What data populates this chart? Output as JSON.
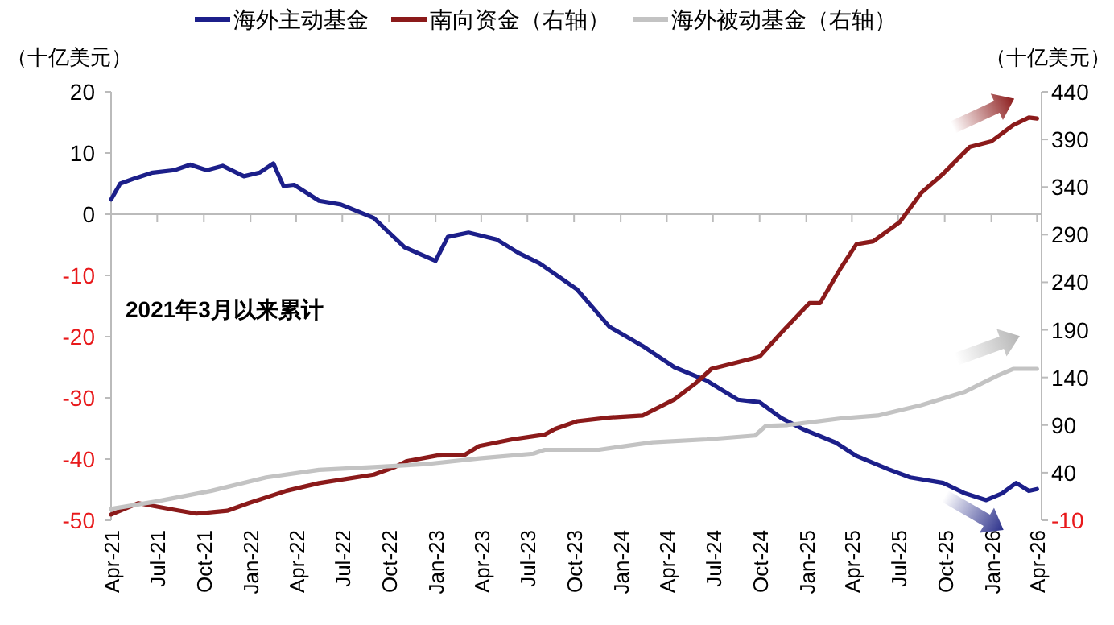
{
  "chart_data": {
    "type": "line",
    "legend": "top",
    "ylabel": "（十亿美元）",
    "y2label": "（十亿美元）",
    "annotations": [
      "2021年3月以来累计"
    ],
    "xlim": [
      "2021-04-01",
      "2026-04-10"
    ],
    "xticks": [
      {
        "value": "2021-04-01",
        "label": "Apr-21"
      },
      {
        "value": "2021-07-01",
        "label": "Jul-21"
      },
      {
        "value": "2021-10-01",
        "label": "Oct-21"
      },
      {
        "value": "2022-01-01",
        "label": "Jan-22"
      },
      {
        "value": "2022-04-01",
        "label": "Apr-22"
      },
      {
        "value": "2022-07-01",
        "label": "Jul-22"
      },
      {
        "value": "2022-10-01",
        "label": "Oct-22"
      },
      {
        "value": "2023-01-01",
        "label": "Jan-23"
      },
      {
        "value": "2023-04-01",
        "label": "Apr-23"
      },
      {
        "value": "2023-07-01",
        "label": "Jul-23"
      },
      {
        "value": "2023-10-01",
        "label": "Oct-23"
      },
      {
        "value": "2024-01-01",
        "label": "Jan-24"
      },
      {
        "value": "2024-04-01",
        "label": "Apr-24"
      },
      {
        "value": "2024-07-01",
        "label": "Jul-24"
      },
      {
        "value": "2024-10-01",
        "label": "Oct-24"
      },
      {
        "value": "2025-01-01",
        "label": "Jan-25"
      },
      {
        "value": "2025-04-01",
        "label": "Apr-25"
      },
      {
        "value": "2025-07-01",
        "label": "Jul-25"
      },
      {
        "value": "2025-10-01",
        "label": "Oct-25"
      },
      {
        "value": "2026-01-01",
        "label": "Jan-26"
      },
      {
        "value": "2026-04-01",
        "label": "Apr-26"
      }
    ],
    "ylim": [
      -50,
      20
    ],
    "yticks": [
      -50,
      -40,
      -30,
      -20,
      -10,
      0,
      10,
      20
    ],
    "y2lim": [
      -10,
      440
    ],
    "y2ticks": [
      -10,
      40,
      90,
      140,
      190,
      240,
      290,
      340,
      390,
      440
    ],
    "series": [
      {
        "name": "海外主动基金",
        "color": "#1c1f8a",
        "x": [
          "2021-04-01",
          "2021-04-19",
          "2021-05-19",
          "2021-06-22",
          "2021-08-04",
          "2021-09-04",
          "2021-10-07",
          "2021-11-07",
          "2021-12-19",
          "2022-01-19",
          "2022-02-15",
          "2022-03-07",
          "2022-03-28",
          "2022-05-16",
          "2022-06-28",
          "2022-09-01",
          "2022-11-01",
          "2023-01-01",
          "2023-01-25",
          "2023-03-07",
          "2023-05-01",
          "2023-06-13",
          "2023-07-25",
          "2023-10-07",
          "2023-12-10",
          "2024-02-13",
          "2024-04-16",
          "2024-06-19",
          "2024-08-19",
          "2024-10-01",
          "2024-11-13",
          "2024-12-25",
          "2025-02-28",
          "2025-04-10",
          "2025-06-13",
          "2025-07-25",
          "2025-09-28",
          "2025-11-10",
          "2025-12-22",
          "2026-01-22",
          "2026-02-19",
          "2026-03-16",
          "2026-04-01"
        ],
        "values": [
          2.4,
          5.0,
          5.9,
          6.8,
          7.2,
          8.1,
          7.2,
          7.9,
          6.2,
          6.8,
          8.3,
          4.6,
          4.8,
          2.2,
          1.6,
          -0.6,
          -5.4,
          -7.6,
          -3.7,
          -3.0,
          -4.1,
          -6.3,
          -8.0,
          -12.3,
          -18.4,
          -21.5,
          -25.0,
          -27.2,
          -30.3,
          -30.7,
          -33.3,
          -35.1,
          -37.3,
          -39.5,
          -41.7,
          -43.0,
          -43.9,
          -45.6,
          -46.7,
          -45.6,
          -43.9,
          -45.2,
          -44.9
        ]
      },
      {
        "name": "南向资金（右轴）",
        "color": "#8b1a1a",
        "axis": "y2",
        "x": [
          "2021-04-01",
          "2021-05-25",
          "2021-08-04",
          "2021-09-16",
          "2021-11-16",
          "2021-12-28",
          "2022-03-13",
          "2022-05-16",
          "2022-09-01",
          "2022-10-13",
          "2022-11-04",
          "2023-01-04",
          "2023-02-28",
          "2023-03-28",
          "2023-06-01",
          "2023-08-04",
          "2023-08-25",
          "2023-10-07",
          "2023-12-10",
          "2024-02-13",
          "2024-04-16",
          "2024-05-28",
          "2024-06-28",
          "2024-08-19",
          "2024-10-01",
          "2024-11-13",
          "2025-01-07",
          "2025-01-28",
          "2025-03-10",
          "2025-04-10",
          "2025-05-13",
          "2025-07-04",
          "2025-08-16",
          "2025-09-28",
          "2025-11-19",
          "2026-01-01",
          "2026-02-13",
          "2026-03-16",
          "2026-04-01"
        ],
        "values": [
          -4,
          8,
          1,
          -3,
          0,
          8,
          21,
          29,
          38,
          46,
          52,
          58,
          59,
          68,
          75,
          80,
          86,
          94,
          98,
          100,
          117,
          134,
          149,
          156,
          162,
          187,
          218,
          218,
          255,
          280,
          283,
          303,
          334,
          354,
          382,
          388,
          405,
          413,
          412
        ]
      },
      {
        "name": "海外被动基金（右轴）",
        "color": "#c3c3c3",
        "axis": "y2",
        "x": [
          "2021-04-01",
          "2021-07-01",
          "2021-10-16",
          "2022-02-01",
          "2022-05-16",
          "2022-09-01",
          "2022-12-13",
          "2023-03-28",
          "2023-07-13",
          "2023-08-04",
          "2023-11-19",
          "2024-03-04",
          "2024-06-19",
          "2024-09-22",
          "2024-10-13",
          "2024-11-25",
          "2025-03-10",
          "2025-05-22",
          "2025-08-16",
          "2025-11-10",
          "2026-01-13",
          "2026-02-13",
          "2026-04-01"
        ],
        "values": [
          2,
          10,
          21,
          35,
          43,
          46,
          49,
          55,
          60,
          64,
          64,
          72,
          75,
          79,
          89,
          90,
          97,
          100,
          111,
          125,
          142,
          149,
          149
        ]
      }
    ]
  }
}
